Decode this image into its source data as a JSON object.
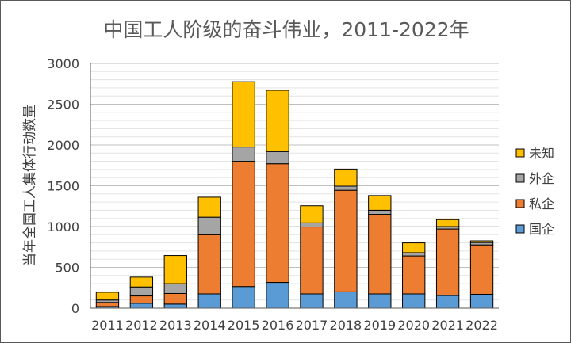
{
  "chart_data": {
    "type": "bar",
    "stacked": true,
    "title": "中国工人阶级的奋斗伟业，2011-2022年",
    "xlabel": "",
    "ylabel": "当年全国工人集体行动数量",
    "ylim": [
      0,
      3000
    ],
    "yticks": [
      0,
      500,
      1000,
      1500,
      2000,
      2500,
      3000
    ],
    "grid": true,
    "legend_position": "right",
    "categories": [
      "2011",
      "2012",
      "2013",
      "2014",
      "2015",
      "2016",
      "2017",
      "2018",
      "2019",
      "2020",
      "2021",
      "2022"
    ],
    "series": [
      {
        "name": "国企",
        "color": "#5b9bd5",
        "values": [
          20,
          60,
          50,
          175,
          265,
          315,
          175,
          200,
          175,
          175,
          155,
          170
        ]
      },
      {
        "name": "私企",
        "color": "#ed7d31",
        "values": [
          50,
          90,
          130,
          725,
          1535,
          1455,
          820,
          1245,
          975,
          465,
          815,
          605
        ]
      },
      {
        "name": "外企",
        "color": "#a5a5a5",
        "values": [
          30,
          110,
          120,
          215,
          175,
          150,
          50,
          50,
          50,
          40,
          30,
          30
        ]
      },
      {
        "name": "未知",
        "color": "#ffc000",
        "values": [
          95,
          120,
          345,
          245,
          800,
          750,
          210,
          210,
          180,
          120,
          85,
          20
        ]
      }
    ],
    "legend_order": [
      "未知",
      "外企",
      "私企",
      "国企"
    ]
  }
}
